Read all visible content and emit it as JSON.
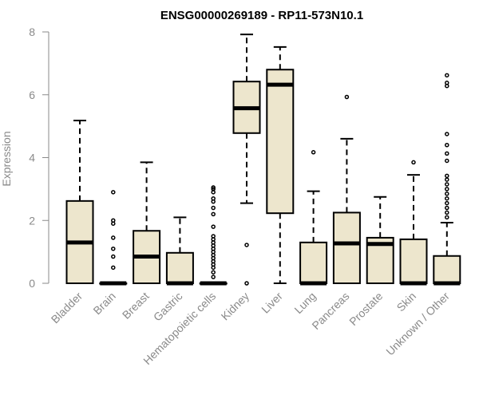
{
  "chart_data": {
    "type": "boxplot",
    "title": "ENSG00000269189 - RP11-573N10.1",
    "xlabel": "",
    "ylabel": "Expression",
    "ylim": [
      0,
      8
    ],
    "yticks": [
      0,
      2,
      4,
      6,
      8
    ],
    "grid": false,
    "colors": {
      "box_fill": "#ede6cd",
      "stroke": "#000000",
      "axis_text": "#8a8a8a"
    },
    "categories": [
      "Bladder",
      "Brain",
      "Breast",
      "Gastric",
      "Hematopoietic cells",
      "Kidney",
      "Liver",
      "Lung",
      "Pancreas",
      "Prostate",
      "Skin",
      "Unknown / Other"
    ],
    "boxes": [
      {
        "category": "Bladder",
        "whisker_low": 0,
        "q1": 0,
        "median": 1.3,
        "q3": 2.62,
        "whisker_high": 5.18,
        "outliers": []
      },
      {
        "category": "Brain",
        "whisker_low": 0,
        "q1": 0,
        "median": 0,
        "q3": 0,
        "whisker_high": 0,
        "outliers": [
          0.5,
          0.85,
          1.1,
          1.45,
          1.9,
          2.0,
          2.9
        ]
      },
      {
        "category": "Breast",
        "whisker_low": 0,
        "q1": 0,
        "median": 0.85,
        "q3": 1.67,
        "whisker_high": 3.85,
        "outliers": []
      },
      {
        "category": "Gastric",
        "whisker_low": 0,
        "q1": 0,
        "median": 0,
        "q3": 0.97,
        "whisker_high": 2.1,
        "outliers": []
      },
      {
        "category": "Hematopoietic cells",
        "whisker_low": 0,
        "q1": 0,
        "median": 0,
        "q3": 0,
        "whisker_high": 0,
        "outliers": [
          0.2,
          0.35,
          0.5,
          0.6,
          0.7,
          0.8,
          0.9,
          1.0,
          1.1,
          1.2,
          1.3,
          1.4,
          1.5,
          1.8,
          2.2,
          2.4,
          2.6,
          2.7,
          2.9,
          3.0,
          3.05
        ]
      },
      {
        "category": "Kidney",
        "whisker_low": 2.55,
        "q1": 4.78,
        "median": 5.57,
        "q3": 6.42,
        "whisker_high": 7.92,
        "outliers": [
          0,
          1.22
        ]
      },
      {
        "category": "Liver",
        "whisker_low": 0,
        "q1": 2.23,
        "median": 6.32,
        "q3": 6.8,
        "whisker_high": 7.52,
        "outliers": []
      },
      {
        "category": "Lung",
        "whisker_low": 0,
        "q1": 0,
        "median": 0,
        "q3": 1.3,
        "whisker_high": 2.93,
        "outliers": [
          4.17
        ]
      },
      {
        "category": "Pancreas",
        "whisker_low": 0,
        "q1": 0,
        "median": 1.27,
        "q3": 2.25,
        "whisker_high": 4.6,
        "outliers": [
          5.93
        ]
      },
      {
        "category": "Prostate",
        "whisker_low": 0,
        "q1": 0,
        "median": 1.25,
        "q3": 1.45,
        "whisker_high": 2.75,
        "outliers": []
      },
      {
        "category": "Skin",
        "whisker_low": 0,
        "q1": 0,
        "median": 0,
        "q3": 1.4,
        "whisker_high": 3.45,
        "outliers": [
          3.85
        ]
      },
      {
        "category": "Unknown / Other",
        "whisker_low": 0,
        "q1": 0,
        "median": 0,
        "q3": 0.87,
        "whisker_high": 1.93,
        "outliers": [
          2.1,
          2.25,
          2.4,
          2.55,
          2.7,
          2.85,
          3.0,
          3.15,
          3.3,
          3.42,
          3.9,
          4.13,
          4.4,
          4.75,
          6.28,
          6.38,
          6.62
        ]
      }
    ]
  }
}
